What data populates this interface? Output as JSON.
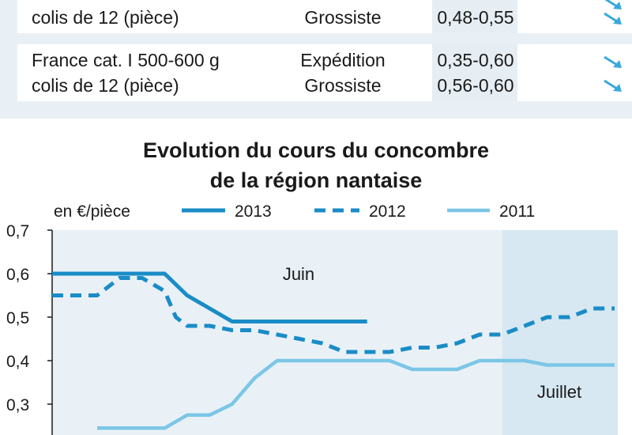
{
  "price_table": {
    "rows": [
      {
        "product_line1": "",
        "product_line2": "colis de 12 (pièce)",
        "entries": [
          {
            "market": "",
            "price": "",
            "trend": "down"
          },
          {
            "market": "Grossiste",
            "price": "0,48-0,55",
            "trend": "down"
          }
        ]
      },
      {
        "product_line1": "France cat. I 500-600 g",
        "product_line2": "colis de 12 (pièce)",
        "entries": [
          {
            "market": "Expédition",
            "price": "0,35-0,60",
            "trend": "down"
          },
          {
            "market": "Grossiste",
            "price": "0,56-0,60",
            "trend": "down"
          }
        ]
      }
    ]
  },
  "colors": {
    "panel_bg": "#e9f0f5",
    "plot_bg": "#e9f1f7",
    "shade_bg": "#d7e8f2",
    "series_2013": "#1a8cc7",
    "series_2012": "#1a8cc7",
    "series_2011": "#7cc6e6",
    "trend_arrow": "#39a9dc"
  },
  "chart_data": {
    "type": "line",
    "title_line1": "Evolution du cours du concombre",
    "title_line2": "de la région nantaise",
    "unit_label": "en €/pièce",
    "y_ticks": [
      "0,7",
      "0,6",
      "0,5",
      "0,4",
      "0,3"
    ],
    "ylim": [
      0.2,
      0.7
    ],
    "xlim": [
      0,
      25
    ],
    "grid": false,
    "legend_position": "top",
    "annotations": [
      "Juin",
      "Juillet"
    ],
    "shaded_region_start": 20,
    "series": [
      {
        "name": "2013",
        "style": "solid",
        "width": "thick",
        "x": [
          0,
          5,
          6,
          8,
          10,
          14
        ],
        "y": [
          0.6,
          0.6,
          0.55,
          0.49,
          0.49,
          0.49
        ]
      },
      {
        "name": "2012",
        "style": "dashed",
        "width": "thick",
        "x": [
          0,
          2,
          3,
          4,
          5,
          5.5,
          6,
          7,
          8,
          9,
          10,
          11,
          12,
          13,
          14,
          15,
          16,
          17,
          18,
          19,
          20,
          21,
          22,
          23,
          24,
          25
        ],
        "y": [
          0.55,
          0.55,
          0.59,
          0.59,
          0.56,
          0.5,
          0.48,
          0.48,
          0.47,
          0.47,
          0.46,
          0.45,
          0.44,
          0.42,
          0.42,
          0.42,
          0.43,
          0.43,
          0.44,
          0.46,
          0.46,
          0.48,
          0.5,
          0.5,
          0.52,
          0.52
        ]
      },
      {
        "name": "2011",
        "style": "solid",
        "width": "medium",
        "x": [
          2,
          3,
          4,
          5,
          6,
          7,
          8,
          9,
          10,
          11,
          12,
          13,
          14,
          15,
          16,
          17,
          18,
          19,
          20,
          21,
          22,
          23,
          24,
          25
        ],
        "y": [
          0.245,
          0.245,
          0.245,
          0.245,
          0.275,
          0.275,
          0.3,
          0.36,
          0.4,
          0.4,
          0.4,
          0.4,
          0.4,
          0.4,
          0.38,
          0.38,
          0.38,
          0.4,
          0.4,
          0.4,
          0.39,
          0.39,
          0.39,
          0.39
        ]
      }
    ]
  }
}
